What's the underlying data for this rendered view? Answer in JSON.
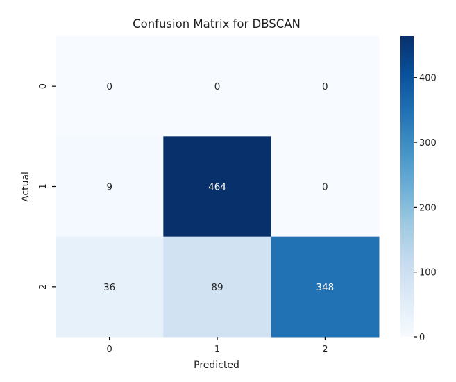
{
  "chart_data": {
    "type": "heatmap",
    "title": "Confusion Matrix for DBSCAN",
    "xlabel": "Predicted",
    "ylabel": "Actual",
    "x_categories": [
      "0",
      "1",
      "2"
    ],
    "y_categories": [
      "0",
      "1",
      "2"
    ],
    "matrix": [
      [
        0,
        0,
        0
      ],
      [
        9,
        464,
        0
      ],
      [
        36,
        89,
        348
      ]
    ],
    "cell_labels": [
      [
        "0",
        "0",
        "0"
      ],
      [
        "9",
        "464",
        "0"
      ],
      [
        "36",
        "89",
        "348"
      ]
    ],
    "colorbar": {
      "min": 0,
      "max": 464,
      "ticks": [
        0,
        100,
        200,
        300,
        400
      ],
      "tick_labels": [
        "0",
        "100",
        "200",
        "300",
        "400"
      ]
    },
    "colormap": "Blues",
    "colormap_stops": [
      "#f7fbff",
      "#deebf7",
      "#c6dbef",
      "#9ecae1",
      "#6baed6",
      "#4292c6",
      "#2171b5",
      "#08519c",
      "#08306b"
    ],
    "text_colors": {
      "light_cell": "#262626",
      "dark_cell": "#ffffff"
    },
    "legend": "right"
  }
}
